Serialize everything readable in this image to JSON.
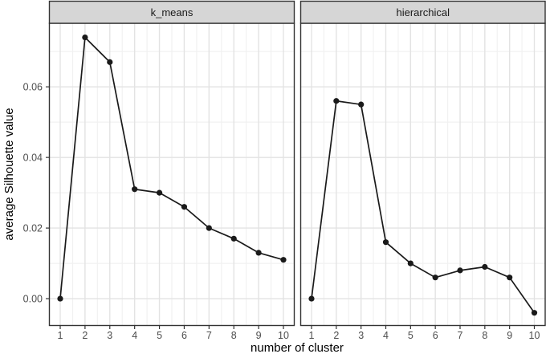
{
  "chart_data": {
    "type": "line",
    "faceted": true,
    "facet_variable_panels": [
      "k_means",
      "hierarchical"
    ],
    "title": "",
    "xlabel": "number of cluster",
    "ylabel": "average Silhouette value",
    "x": [
      1,
      2,
      3,
      4,
      5,
      6,
      7,
      8,
      9,
      10
    ],
    "x_tick_labels": [
      "1",
      "2",
      "3",
      "4",
      "5",
      "6",
      "7",
      "8",
      "9",
      "10"
    ],
    "y_ticks": [
      0.0,
      0.02,
      0.04,
      0.06
    ],
    "y_tick_labels": [
      "0.00",
      "0.02",
      "0.04",
      "0.06"
    ],
    "y_minor_ticks": [
      0.01,
      0.03,
      0.05,
      0.07
    ],
    "ylim": [
      -0.0076,
      0.078
    ],
    "grid": {
      "major": true,
      "minor": true
    },
    "legend_position": "none",
    "series": [
      {
        "name": "k_means",
        "values": [
          0.0,
          0.074,
          0.067,
          0.031,
          0.03,
          0.026,
          0.02,
          0.017,
          0.013,
          0.011
        ]
      },
      {
        "name": "hierarchical",
        "values": [
          0.0,
          0.056,
          0.055,
          0.016,
          0.01,
          0.006,
          0.008,
          0.009,
          0.006,
          -0.004
        ]
      }
    ],
    "colors": {
      "line": "#1a1a1a",
      "point": "#1a1a1a",
      "panel_background": "#ffffff",
      "panel_border": "#333333",
      "strip_fill": "#d6d6d6",
      "strip_border": "#333333",
      "grid_major": "#e3e3e3",
      "grid_minor": "#f1f1f1",
      "tick_mark": "#333333",
      "tick_text": "#4d4d4d",
      "axis_title_text": "#000000"
    }
  }
}
